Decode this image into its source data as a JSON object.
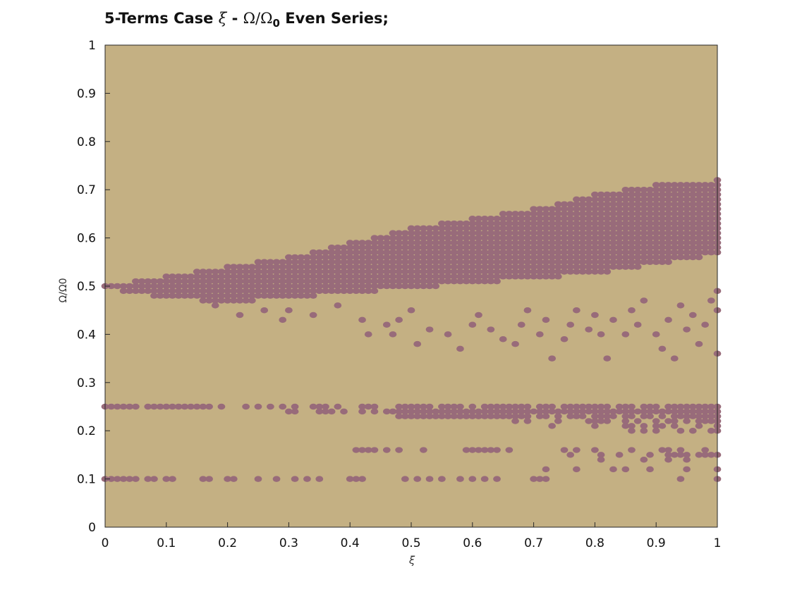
{
  "title": {
    "prefix": "5-Terms Case",
    "xi": "ξ",
    "dash": "-",
    "omega": "Ω/Ω",
    "sub": "0",
    "suffix": "Even Series;"
  },
  "colors": {
    "background": "#c4b083",
    "region": "#986b7a",
    "axis": "#262626"
  },
  "chart_data": {
    "type": "scatter",
    "title": "5-Terms Case ξ - Ω/Ω0 Even Series;",
    "xlabel": "ξ",
    "ylabel": "Ω/Ω0",
    "xlim": [
      0,
      1
    ],
    "ylim": [
      0,
      1
    ],
    "grid": false,
    "xticks": [
      "0",
      "0.1",
      "0.2",
      "0.3",
      "0.4",
      "0.5",
      "0.6",
      "0.7",
      "0.8",
      "0.9",
      "1"
    ],
    "yticks": [
      "0",
      "0.1",
      "0.2",
      "0.3",
      "0.4",
      "0.5",
      "0.6",
      "0.7",
      "0.8",
      "0.9",
      "1"
    ],
    "grid_step": 0.01,
    "background_class": "stable",
    "marked_class": "unstable",
    "main_band": {
      "x": [
        0,
        0.1,
        0.2,
        0.3,
        0.4,
        0.5,
        0.6,
        0.7,
        0.8,
        0.9,
        1.0
      ],
      "lower": [
        0.5,
        0.48,
        0.47,
        0.48,
        0.49,
        0.5,
        0.51,
        0.52,
        0.53,
        0.55,
        0.57
      ],
      "upper": [
        0.5,
        0.52,
        0.54,
        0.56,
        0.59,
        0.62,
        0.64,
        0.66,
        0.69,
        0.71,
        0.72
      ]
    },
    "sparse_points": [
      [
        0.18,
        0.46
      ],
      [
        0.22,
        0.44
      ],
      [
        0.26,
        0.45
      ],
      [
        0.29,
        0.43
      ],
      [
        0.3,
        0.45
      ],
      [
        0.34,
        0.44
      ],
      [
        0.38,
        0.46
      ],
      [
        0.42,
        0.43
      ],
      [
        0.43,
        0.4
      ],
      [
        0.46,
        0.42
      ],
      [
        0.47,
        0.4
      ],
      [
        0.48,
        0.43
      ],
      [
        0.5,
        0.45
      ],
      [
        0.51,
        0.38
      ],
      [
        0.53,
        0.41
      ],
      [
        0.56,
        0.4
      ],
      [
        0.58,
        0.37
      ],
      [
        0.6,
        0.42
      ],
      [
        0.61,
        0.44
      ],
      [
        0.63,
        0.41
      ],
      [
        0.65,
        0.39
      ],
      [
        0.67,
        0.38
      ],
      [
        0.68,
        0.42
      ],
      [
        0.69,
        0.45
      ],
      [
        0.71,
        0.4
      ],
      [
        0.72,
        0.43
      ],
      [
        0.73,
        0.35
      ],
      [
        0.75,
        0.39
      ],
      [
        0.76,
        0.42
      ],
      [
        0.77,
        0.45
      ],
      [
        0.79,
        0.41
      ],
      [
        0.8,
        0.44
      ],
      [
        0.81,
        0.4
      ],
      [
        0.82,
        0.35
      ],
      [
        0.83,
        0.43
      ],
      [
        0.85,
        0.4
      ],
      [
        0.86,
        0.45
      ],
      [
        0.87,
        0.42
      ],
      [
        0.88,
        0.47
      ],
      [
        0.9,
        0.4
      ],
      [
        0.91,
        0.37
      ],
      [
        0.92,
        0.43
      ],
      [
        0.93,
        0.35
      ],
      [
        0.94,
        0.46
      ],
      [
        0.95,
        0.41
      ],
      [
        0.96,
        0.44
      ],
      [
        0.97,
        0.38
      ],
      [
        0.98,
        0.42
      ],
      [
        0.99,
        0.47
      ],
      [
        1.0,
        0.36
      ],
      [
        1.0,
        0.45
      ],
      [
        1.0,
        0.49
      ]
    ],
    "row_025": [
      0,
      0.01,
      0.02,
      0.03,
      0.04,
      0.05,
      0.07,
      0.08,
      0.09,
      0.1,
      0.11,
      0.12,
      0.13,
      0.14,
      0.15,
      0.16,
      0.17,
      0.19,
      0.23,
      0.25,
      0.27,
      0.29,
      0.31,
      0.34,
      0.35,
      0.36,
      0.38,
      0.42,
      0.43,
      0.44,
      0.48,
      0.49,
      0.5,
      0.51,
      0.52,
      0.53,
      0.55,
      0.56,
      0.57,
      0.58,
      0.6,
      0.62,
      0.63,
      0.64,
      0.65,
      0.66,
      0.67,
      0.68,
      0.69,
      0.71,
      0.72,
      0.73,
      0.75,
      0.76,
      0.77,
      0.78,
      0.79,
      0.8,
      0.81,
      0.82,
      0.84,
      0.85,
      0.86,
      0.88,
      0.89,
      0.9,
      0.92,
      0.93,
      0.94,
      0.95,
      0.96,
      0.97,
      0.98,
      0.99,
      1.0
    ],
    "row_024": [
      0.3,
      0.31,
      0.35,
      0.36,
      0.37,
      0.39,
      0.42,
      0.44,
      0.46,
      0.47,
      0.48,
      0.49,
      0.5,
      0.51,
      0.52,
      0.53,
      0.54,
      0.55,
      0.56,
      0.57,
      0.58,
      0.59,
      0.6,
      0.61,
      0.62,
      0.63,
      0.64,
      0.65,
      0.66,
      0.67,
      0.68,
      0.69,
      0.7,
      0.71,
      0.72,
      0.73,
      0.74,
      0.75,
      0.76,
      0.77,
      0.78,
      0.79,
      0.8,
      0.81,
      0.82,
      0.83,
      0.84,
      0.85,
      0.86,
      0.87,
      0.88,
      0.89,
      0.9,
      0.91,
      0.92,
      0.93,
      0.94,
      0.95,
      0.96,
      0.97,
      0.98,
      0.99,
      1.0
    ],
    "row_023": [
      0.48,
      0.49,
      0.5,
      0.51,
      0.52,
      0.53,
      0.54,
      0.55,
      0.56,
      0.57,
      0.58,
      0.59,
      0.6,
      0.61,
      0.62,
      0.63,
      0.64,
      0.65,
      0.66,
      0.67,
      0.68,
      0.69,
      0.71,
      0.72,
      0.74,
      0.76,
      0.77,
      0.78,
      0.8,
      0.81,
      0.82,
      0.83,
      0.85,
      0.86,
      0.88,
      0.89,
      0.91,
      0.93,
      0.94,
      0.95,
      0.96,
      0.97,
      0.98,
      0.99,
      1.0
    ],
    "row_022": [
      0.67,
      0.69,
      0.74,
      0.79,
      0.8,
      0.81,
      0.82,
      0.85,
      0.87,
      0.9,
      0.92,
      0.93,
      0.95,
      0.97,
      0.98,
      0.99,
      1.0
    ],
    "row_021": [
      0.73,
      0.8,
      0.85,
      0.86,
      0.88,
      0.9,
      0.91,
      0.93,
      0.97,
      1.0
    ],
    "row_020": [
      0.86,
      0.88,
      0.9,
      0.94,
      0.96,
      0.99,
      1.0
    ],
    "row_016": [
      0.41,
      0.42,
      0.43,
      0.44,
      0.46,
      0.48,
      0.52,
      0.59,
      0.6,
      0.61,
      0.62,
      0.63,
      0.64,
      0.66,
      0.75,
      0.77,
      0.8,
      0.86,
      0.91,
      0.92,
      0.94,
      0.98
    ],
    "row_015": [
      0.76,
      0.81,
      0.84,
      0.89,
      0.92,
      0.93,
      0.94,
      0.95,
      0.97,
      0.98,
      0.99,
      1.0
    ],
    "row_014": [
      0.81,
      0.88,
      0.92,
      0.95
    ],
    "row_012": [
      0.72,
      0.77,
      0.83,
      0.85,
      0.89,
      0.95,
      1.0
    ],
    "row_010": [
      0,
      0.01,
      0.02,
      0.03,
      0.04,
      0.05,
      0.07,
      0.08,
      0.1,
      0.11,
      0.16,
      0.17,
      0.2,
      0.21,
      0.25,
      0.28,
      0.31,
      0.33,
      0.35,
      0.4,
      0.41,
      0.42,
      0.49,
      0.51,
      0.53,
      0.55,
      0.58,
      0.6,
      0.62,
      0.64,
      0.7,
      0.71,
      0.72,
      0.94,
      1.0
    ]
  }
}
